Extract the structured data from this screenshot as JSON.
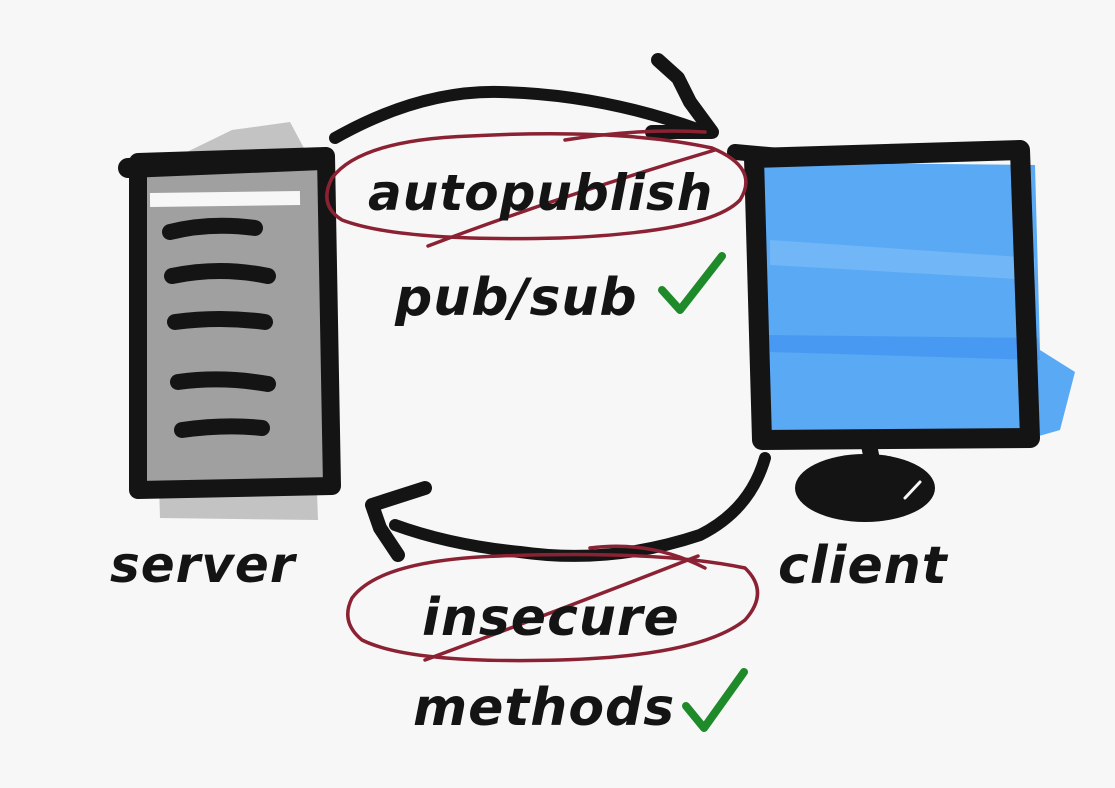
{
  "labels": {
    "autopublish": "autopublish",
    "pubsub": "pub/sub",
    "server": "server",
    "client": "client",
    "insecure": "insecure",
    "methods": "methods"
  },
  "colors": {
    "ink": "#141414",
    "strike": "#8b2233",
    "check": "#1f8a2a",
    "server_fill": "#a0a0a0",
    "server_shadow": "#bdbdbd",
    "screen": "#5aa9f5",
    "screen_light": "#7bbcf7",
    "background": "#f7f7f7"
  },
  "icons": [
    "server-icon",
    "monitor-icon",
    "checkmark-icon",
    "arrow-icon"
  ]
}
